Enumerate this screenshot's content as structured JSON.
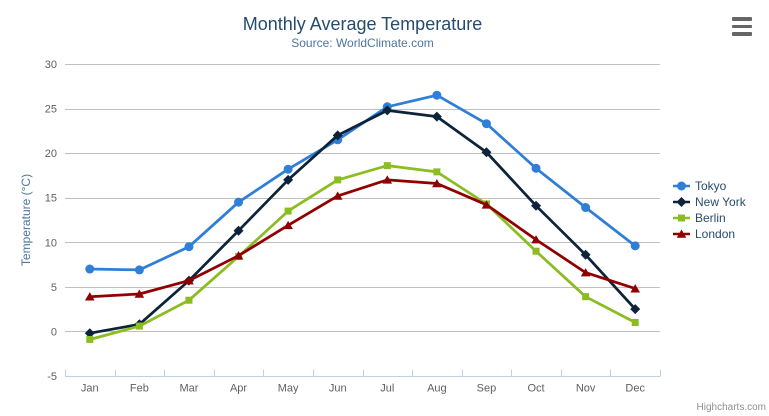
{
  "chart": {
    "title": "Monthly Average Temperature",
    "subtitle": "Source: WorldClimate.com",
    "credits": "Highcharts.com",
    "export_menu_icon": "hamburger-icon"
  },
  "colors": {
    "background": "#ffffff",
    "title": "#274b6d",
    "subtitle": "#4d759e",
    "axis_labels": "#606060",
    "y_axis_title": "#4d759e",
    "gridline": "#c0c0c0",
    "x_axis_line": "#c0d0e0",
    "legend_text": "#274b6d",
    "credits": "#909090",
    "export_icon": "#666666"
  },
  "chart_data": {
    "type": "line",
    "title": "Monthly Average Temperature",
    "subtitle": "Source: WorldClimate.com",
    "categories": [
      "Jan",
      "Feb",
      "Mar",
      "Apr",
      "May",
      "Jun",
      "Jul",
      "Aug",
      "Sep",
      "Oct",
      "Nov",
      "Dec"
    ],
    "series": [
      {
        "name": "Tokyo",
        "color": "#2f7ed8",
        "marker": "circle",
        "values": [
          7.0,
          6.9,
          9.5,
          14.5,
          18.2,
          21.5,
          25.2,
          26.5,
          23.3,
          18.3,
          13.9,
          9.6
        ]
      },
      {
        "name": "New York",
        "color": "#0d233a",
        "marker": "diamond",
        "values": [
          -0.2,
          0.8,
          5.7,
          11.3,
          17.0,
          22.0,
          24.8,
          24.1,
          20.1,
          14.1,
          8.6,
          2.5
        ]
      },
      {
        "name": "Berlin",
        "color": "#8bbc21",
        "marker": "square",
        "values": [
          -0.9,
          0.6,
          3.5,
          8.4,
          13.5,
          17.0,
          18.6,
          17.9,
          14.3,
          9.0,
          3.9,
          1.0
        ]
      },
      {
        "name": "London",
        "color": "#910000",
        "marker": "triangle",
        "values": [
          3.9,
          4.2,
          5.7,
          8.5,
          11.9,
          15.2,
          17.0,
          16.6,
          14.2,
          10.3,
          6.6,
          4.8
        ]
      }
    ],
    "xlabel": "",
    "ylabel": "Temperature (°C)",
    "ylim": [
      -5,
      30
    ],
    "yticks": [
      -5,
      0,
      5,
      10,
      15,
      20,
      25,
      30
    ],
    "grid": true,
    "legend_position": "right"
  }
}
